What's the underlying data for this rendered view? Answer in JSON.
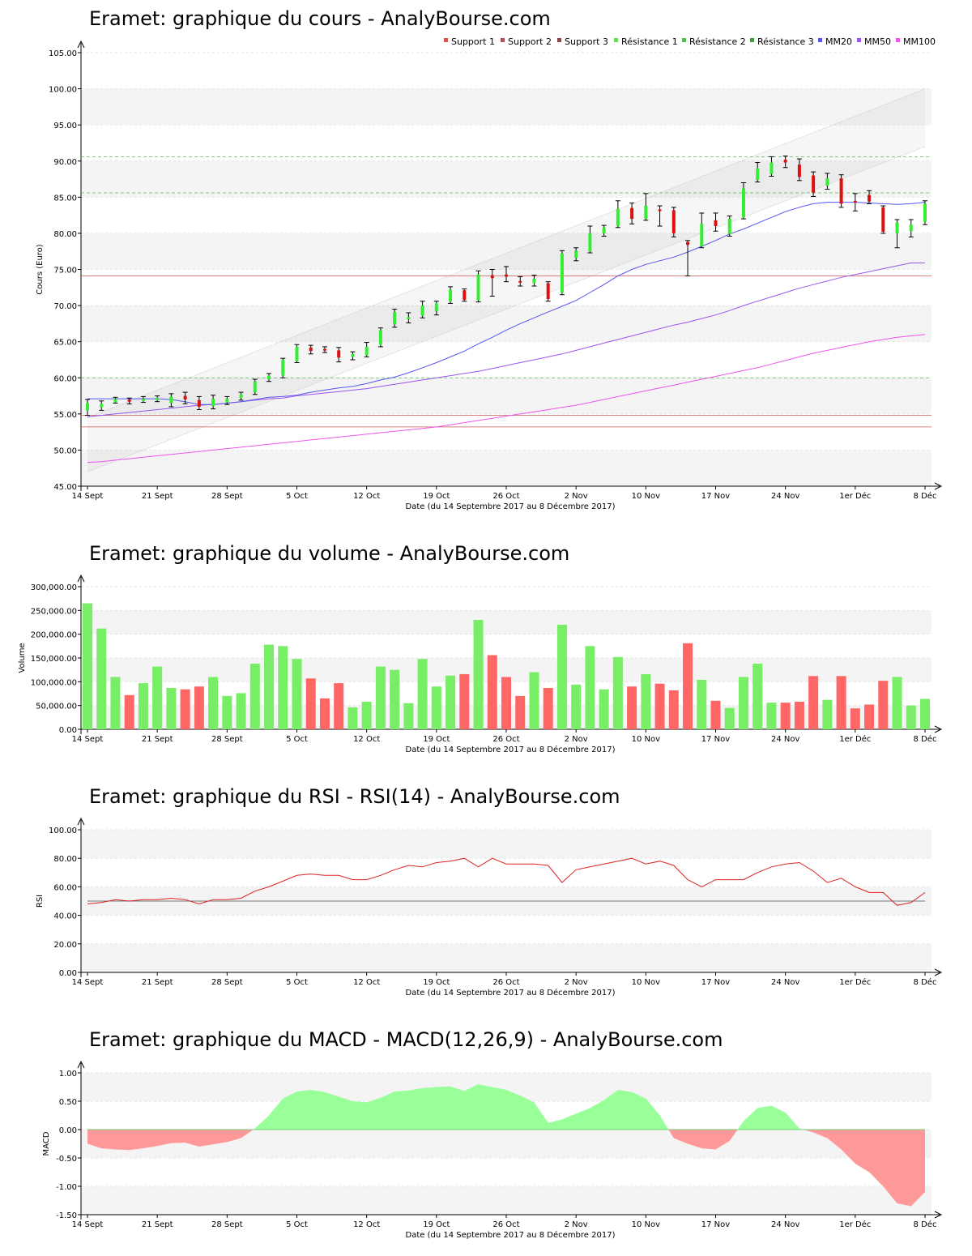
{
  "chart_data": [
    {
      "type": "candlestick",
      "title": "Eramet: graphique du cours - AnalyBourse.com",
      "ylabel": "Cours (Euro)",
      "xlabel": "Date (du 14 Septembre 2017 au 8 Décembre 2017)",
      "ylim": [
        45,
        105
      ],
      "yticks": [
        "45.00",
        "50.00",
        "55.00",
        "60.00",
        "65.00",
        "70.00",
        "75.00",
        "80.00",
        "85.00",
        "90.00",
        "95.00",
        "100.00",
        "105.00"
      ],
      "xticks": [
        {
          "i": 0,
          "label": "14 Sept"
        },
        {
          "i": 5,
          "label": "21 Sept"
        },
        {
          "i": 10,
          "label": "28 Sept"
        },
        {
          "i": 15,
          "label": "5 Oct"
        },
        {
          "i": 20,
          "label": "12 Oct"
        },
        {
          "i": 25,
          "label": "19 Oct"
        },
        {
          "i": 30,
          "label": "26 Oct"
        },
        {
          "i": 35,
          "label": "2 Nov"
        },
        {
          "i": 40,
          "label": "10 Nov"
        },
        {
          "i": 45,
          "label": "17 Nov"
        },
        {
          "i": 50,
          "label": "24 Nov"
        },
        {
          "i": 55,
          "label": "1er Déc"
        },
        {
          "i": 60,
          "label": "8 Déc"
        }
      ],
      "legend": [
        {
          "name": "Support 1",
          "color": "#d9534f"
        },
        {
          "name": "Support 2",
          "color": "#b05050"
        },
        {
          "name": "Support 3",
          "color": "#8b4a4a"
        },
        {
          "name": "Résistance 1",
          "color": "#66dd55"
        },
        {
          "name": "Résistance 2",
          "color": "#55bb55"
        },
        {
          "name": "Résistance 3",
          "color": "#449944"
        },
        {
          "name": "MM20",
          "color": "#5555ee"
        },
        {
          "name": "MM50",
          "color": "#9955ee"
        },
        {
          "name": "MM100",
          "color": "#ee55ee"
        }
      ],
      "levels": {
        "support": [
          74.1,
          54.8,
          53.2
        ],
        "resistance": [
          90.6,
          85.6,
          60.0
        ]
      },
      "channel": {
        "upper": [
          [
            0,
            54.5
          ],
          [
            60,
            100.0
          ]
        ],
        "lower": [
          [
            0,
            47.0
          ],
          [
            60,
            92.0
          ]
        ]
      },
      "candles": [
        [
          55.5,
          56.5,
          54.8,
          57.0
        ],
        [
          55.9,
          56.4,
          55.5,
          56.8
        ],
        [
          56.6,
          57.1,
          56.5,
          57.3
        ],
        [
          57.0,
          56.7,
          56.4,
          57.2
        ],
        [
          56.8,
          57.1,
          56.6,
          57.4
        ],
        [
          56.9,
          57.2,
          56.7,
          57.5
        ],
        [
          56.5,
          57.4,
          56.0,
          57.8
        ],
        [
          57.5,
          57.0,
          56.4,
          58.0
        ],
        [
          56.9,
          56.0,
          55.6,
          57.4
        ],
        [
          56.1,
          57.1,
          55.7,
          57.6
        ],
        [
          56.6,
          57.1,
          56.3,
          57.4
        ],
        [
          57.2,
          57.7,
          56.9,
          58.0
        ],
        [
          58.0,
          59.5,
          57.7,
          59.8
        ],
        [
          59.8,
          60.3,
          59.5,
          60.6
        ],
        [
          60.3,
          62.5,
          60.0,
          62.7
        ],
        [
          62.3,
          64.3,
          62.1,
          64.6
        ],
        [
          64.2,
          63.7,
          63.3,
          64.5
        ],
        [
          64.0,
          63.9,
          63.5,
          64.3
        ],
        [
          63.8,
          62.8,
          62.2,
          64.2
        ],
        [
          62.9,
          63.3,
          62.5,
          63.6
        ],
        [
          63.1,
          64.3,
          62.9,
          64.9
        ],
        [
          64.6,
          66.6,
          64.3,
          66.9
        ],
        [
          67.4,
          69.1,
          67.0,
          69.5
        ],
        [
          68.1,
          68.4,
          67.6,
          69.0
        ],
        [
          68.6,
          70.0,
          68.3,
          70.6
        ],
        [
          69.2,
          70.3,
          68.7,
          70.6
        ],
        [
          70.6,
          72.2,
          70.3,
          72.6
        ],
        [
          72.1,
          70.8,
          70.6,
          72.3
        ],
        [
          70.7,
          74.3,
          70.5,
          74.8
        ],
        [
          74.2,
          73.8,
          71.3,
          75.0
        ],
        [
          74.3,
          74.0,
          73.3,
          75.4
        ],
        [
          73.4,
          73.2,
          72.7,
          74.0
        ],
        [
          73.1,
          73.7,
          72.7,
          74.2
        ],
        [
          73.1,
          70.9,
          70.6,
          73.3
        ],
        [
          71.8,
          77.2,
          71.5,
          77.6
        ],
        [
          76.6,
          77.6,
          76.2,
          78.0
        ],
        [
          77.5,
          80.0,
          77.3,
          81.0
        ],
        [
          80.0,
          80.8,
          79.6,
          81.1
        ],
        [
          81.0,
          83.4,
          80.8,
          84.5
        ],
        [
          83.5,
          82.0,
          81.3,
          84.2
        ],
        [
          82.0,
          83.8,
          81.8,
          85.5
        ],
        [
          83.3,
          83.1,
          81.0,
          83.8
        ],
        [
          83.2,
          80.0,
          79.5,
          83.6
        ],
        [
          78.8,
          78.4,
          74.1,
          79.0
        ],
        [
          78.2,
          81.3,
          78.0,
          82.8
        ],
        [
          81.8,
          81.0,
          80.3,
          82.8
        ],
        [
          79.9,
          82.0,
          79.6,
          82.4
        ],
        [
          82.2,
          86.2,
          82.0,
          87.0
        ],
        [
          87.4,
          89.0,
          87.1,
          89.8
        ],
        [
          88.2,
          89.8,
          87.9,
          90.6
        ],
        [
          90.2,
          89.8,
          89.1,
          90.7
        ],
        [
          89.5,
          87.8,
          87.3,
          90.3
        ],
        [
          88.0,
          85.6,
          85.1,
          88.5
        ],
        [
          86.6,
          87.6,
          86.1,
          88.3
        ],
        [
          87.6,
          84.1,
          83.6,
          88.1
        ],
        [
          84.5,
          84.3,
          83.1,
          85.5
        ],
        [
          85.3,
          84.4,
          84.1,
          85.9
        ],
        [
          83.6,
          80.2,
          80.0,
          83.8
        ],
        [
          80.0,
          81.5,
          78.0,
          81.9
        ],
        [
          80.3,
          81.2,
          79.5,
          81.9
        ],
        [
          81.6,
          84.1,
          81.2,
          84.5
        ]
      ],
      "ma20": [
        57.1,
        57.1,
        57.1,
        57.1,
        57.1,
        57.1,
        57.0,
        56.7,
        56.3,
        56.3,
        56.5,
        56.7,
        57.0,
        57.3,
        57.4,
        57.6,
        58.0,
        58.3,
        58.6,
        58.8,
        59.2,
        59.7,
        60.1,
        60.7,
        61.4,
        62.1,
        62.9,
        63.7,
        64.7,
        65.6,
        66.6,
        67.5,
        68.3,
        69.1,
        69.9,
        70.7,
        71.8,
        72.9,
        74.1,
        75.0,
        75.7,
        76.2,
        76.7,
        77.4,
        78.2,
        79.0,
        79.9,
        80.6,
        81.4,
        82.2,
        83.0,
        83.6,
        84.1,
        84.3,
        84.3,
        84.3,
        84.2,
        84.1,
        84.0,
        84.1,
        84.3
      ],
      "ma50": [
        54.6,
        54.8,
        55.0,
        55.2,
        55.4,
        55.6,
        55.8,
        56.0,
        56.2,
        56.3,
        56.5,
        56.7,
        56.9,
        57.1,
        57.2,
        57.5,
        57.7,
        57.9,
        58.1,
        58.3,
        58.5,
        58.8,
        59.1,
        59.4,
        59.7,
        60.0,
        60.3,
        60.6,
        60.9,
        61.3,
        61.7,
        62.1,
        62.5,
        62.9,
        63.3,
        63.8,
        64.3,
        64.8,
        65.3,
        65.8,
        66.3,
        66.8,
        67.3,
        67.7,
        68.2,
        68.7,
        69.3,
        70.0,
        70.6,
        71.2,
        71.8,
        72.4,
        72.9,
        73.4,
        73.9,
        74.3,
        74.7,
        75.1,
        75.5,
        75.9,
        75.9
      ],
      "ma100": [
        48.3,
        48.4,
        48.6,
        48.8,
        49.0,
        49.2,
        49.4,
        49.6,
        49.8,
        50.0,
        50.2,
        50.4,
        50.6,
        50.8,
        51.0,
        51.2,
        51.4,
        51.6,
        51.8,
        52.0,
        52.2,
        52.4,
        52.6,
        52.8,
        53.0,
        53.2,
        53.5,
        53.8,
        54.1,
        54.4,
        54.7,
        55.0,
        55.3,
        55.6,
        55.9,
        56.2,
        56.6,
        57.0,
        57.4,
        57.8,
        58.2,
        58.6,
        59.0,
        59.4,
        59.8,
        60.2,
        60.6,
        61.0,
        61.4,
        61.9,
        62.4,
        62.9,
        63.4,
        63.8,
        64.2,
        64.6,
        65.0,
        65.3,
        65.6,
        65.8,
        66.0
      ]
    },
    {
      "type": "bar",
      "title": "Eramet: graphique du volume - AnalyBourse.com",
      "ylabel": "Volume",
      "xlabel": "Date (du 14 Septembre 2017 au 8 Décembre 2017)",
      "ylim": [
        0,
        300000
      ],
      "yticks": [
        "0.00",
        "50,000.00",
        "100,000.00",
        "150,000.00",
        "200,000.00",
        "250,000.00",
        "300,000.00"
      ],
      "xticks": [
        {
          "i": 0,
          "label": "14 Sept"
        },
        {
          "i": 5,
          "label": "21 Sept"
        },
        {
          "i": 10,
          "label": "28 Sept"
        },
        {
          "i": 15,
          "label": "5 Oct"
        },
        {
          "i": 20,
          "label": "12 Oct"
        },
        {
          "i": 25,
          "label": "19 Oct"
        },
        {
          "i": 30,
          "label": "26 Oct"
        },
        {
          "i": 35,
          "label": "2 Nov"
        },
        {
          "i": 40,
          "label": "10 Nov"
        },
        {
          "i": 45,
          "label": "17 Nov"
        },
        {
          "i": 50,
          "label": "24 Nov"
        },
        {
          "i": 55,
          "label": "1er Déc"
        },
        {
          "i": 60,
          "label": "8 Déc"
        }
      ],
      "up_color": "#77ee66",
      "down_color": "#ff6666",
      "values": [
        265000,
        212000,
        110000,
        72000,
        97000,
        132000,
        87000,
        84000,
        90000,
        110000,
        70000,
        76000,
        138000,
        178000,
        175000,
        148000,
        107000,
        65000,
        97000,
        46000,
        58000,
        132000,
        125000,
        55000,
        148000,
        90000,
        113000,
        116000,
        230000,
        156000,
        110000,
        70000,
        120000,
        87000,
        220000,
        94000,
        175000,
        84000,
        152000,
        90000,
        116000,
        96000,
        82000,
        181000,
        104000,
        60000,
        45000,
        110000,
        138000,
        56000,
        56000,
        58000,
        112000,
        62000,
        112000,
        44000,
        52000,
        102000,
        110000,
        50000,
        64000
      ]
    },
    {
      "type": "line",
      "title": "Eramet: graphique du RSI - RSI(14) - AnalyBourse.com",
      "ylabel": "RSI",
      "xlabel": "Date (du 14 Septembre 2017 au 8 Décembre 2017)",
      "ylim": [
        0,
        100
      ],
      "yticks": [
        "0.00",
        "20.00",
        "40.00",
        "60.00",
        "80.00",
        "100.00"
      ],
      "xticks": [
        {
          "i": 0,
          "label": "14 Sept"
        },
        {
          "i": 5,
          "label": "21 Sept"
        },
        {
          "i": 10,
          "label": "28 Sept"
        },
        {
          "i": 15,
          "label": "5 Oct"
        },
        {
          "i": 20,
          "label": "12 Oct"
        },
        {
          "i": 25,
          "label": "19 Oct"
        },
        {
          "i": 30,
          "label": "26 Oct"
        },
        {
          "i": 35,
          "label": "2 Nov"
        },
        {
          "i": 40,
          "label": "10 Nov"
        },
        {
          "i": 45,
          "label": "17 Nov"
        },
        {
          "i": 50,
          "label": "24 Nov"
        },
        {
          "i": 55,
          "label": "1er Déc"
        },
        {
          "i": 60,
          "label": "8 Déc"
        }
      ],
      "reference": 50,
      "color": "#dd2222",
      "values": [
        48,
        49,
        51,
        50,
        51,
        51,
        52,
        51,
        48,
        51,
        51,
        52,
        57,
        60,
        64,
        68,
        69,
        68,
        68,
        65,
        65,
        68,
        72,
        75,
        74,
        77,
        78,
        80,
        74,
        80,
        76,
        76,
        76,
        75,
        63,
        72,
        74,
        76,
        78,
        80,
        76,
        78,
        75,
        65,
        60,
        65,
        65,
        65,
        70,
        74,
        76,
        77,
        71,
        63,
        66,
        60,
        56,
        56,
        47,
        49,
        56
      ]
    },
    {
      "type": "area",
      "title": "Eramet: graphique du MACD - MACD(12,26,9) - AnalyBourse.com",
      "ylabel": "MACD",
      "xlabel": "Date (du 14 Septembre 2017 au 8 Décembre 2017)",
      "ylim": [
        -1.5,
        1.0
      ],
      "yticks": [
        "-1.50",
        "-1.00",
        "-0.50",
        "0.00",
        "0.50",
        "1.00"
      ],
      "xticks": [
        {
          "i": 0,
          "label": "14 Sept"
        },
        {
          "i": 5,
          "label": "21 Sept"
        },
        {
          "i": 10,
          "label": "28 Sept"
        },
        {
          "i": 15,
          "label": "5 Oct"
        },
        {
          "i": 20,
          "label": "12 Oct"
        },
        {
          "i": 25,
          "label": "19 Oct"
        },
        {
          "i": 30,
          "label": "26 Oct"
        },
        {
          "i": 35,
          "label": "2 Nov"
        },
        {
          "i": 40,
          "label": "10 Nov"
        },
        {
          "i": 45,
          "label": "17 Nov"
        },
        {
          "i": 50,
          "label": "24 Nov"
        },
        {
          "i": 55,
          "label": "1er Déc"
        },
        {
          "i": 60,
          "label": "8 Déc"
        }
      ],
      "pos_color": "#99ff99",
      "neg_color": "#ff9999",
      "values": [
        -0.25,
        -0.33,
        -0.35,
        -0.36,
        -0.33,
        -0.29,
        -0.24,
        -0.23,
        -0.3,
        -0.26,
        -0.22,
        -0.15,
        0.02,
        0.25,
        0.55,
        0.67,
        0.7,
        0.66,
        0.58,
        0.5,
        0.48,
        0.56,
        0.67,
        0.69,
        0.73,
        0.75,
        0.76,
        0.68,
        0.8,
        0.75,
        0.7,
        0.6,
        0.48,
        0.12,
        0.18,
        0.28,
        0.38,
        0.52,
        0.7,
        0.66,
        0.55,
        0.25,
        -0.15,
        -0.25,
        -0.33,
        -0.35,
        -0.2,
        0.15,
        0.38,
        0.42,
        0.3,
        0.02,
        -0.05,
        -0.15,
        -0.35,
        -0.6,
        -0.75,
        -1.0,
        -1.3,
        -1.35,
        -1.1
      ]
    }
  ]
}
